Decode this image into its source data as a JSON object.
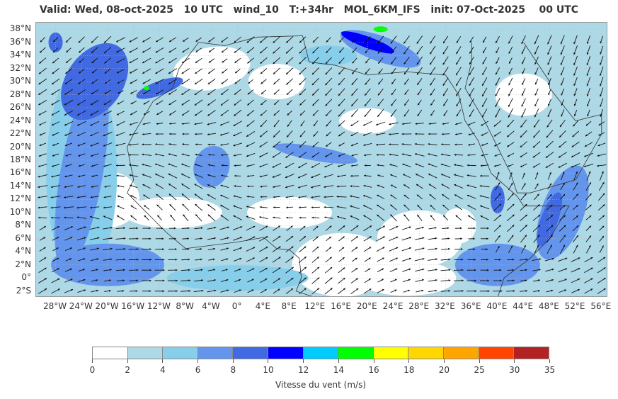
{
  "title": "Valid: Wed, 08-oct-2025   10 UTC   wind_10   T:+34hr   MOL_6KM_IFS   init: 07-Oct-2025    00 UTC",
  "map": {
    "lat_labels": [
      "38°N",
      "36°N",
      "34°N",
      "32°N",
      "30°N",
      "28°N",
      "26°N",
      "24°N",
      "22°N",
      "20°N",
      "18°N",
      "16°N",
      "14°N",
      "12°N",
      "10°N",
      "8°N",
      "6°N",
      "4°N",
      "2°N",
      "0°",
      "2°S"
    ],
    "lon_labels": [
      "28°W",
      "24°W",
      "20°W",
      "16°W",
      "12°W",
      "8°W",
      "4°W",
      "0°",
      "4°E",
      "8°E",
      "12°E",
      "16°E",
      "20°E",
      "24°E",
      "28°E",
      "32°E",
      "36°E",
      "40°E",
      "44°E",
      "48°E",
      "52°E",
      "56°E"
    ],
    "lat_range": [
      -3,
      39
    ],
    "lon_range": [
      -31,
      57
    ],
    "land_color": "#ffffff",
    "grid": true
  },
  "colorbar": {
    "title": "Vitesse du vent (m/s)",
    "ticks": [
      "0",
      "2",
      "4",
      "6",
      "8",
      "10",
      "12",
      "14",
      "16",
      "18",
      "20",
      "25",
      "30",
      "35"
    ],
    "colors": [
      "#ffffff",
      "#add8e6",
      "#87ceeb",
      "#6495ed",
      "#4169e1",
      "#0000ff",
      "#00ccff",
      "#00ff00",
      "#ffff00",
      "#ffd700",
      "#ffa500",
      "#ff4500",
      "#b22222"
    ]
  }
}
